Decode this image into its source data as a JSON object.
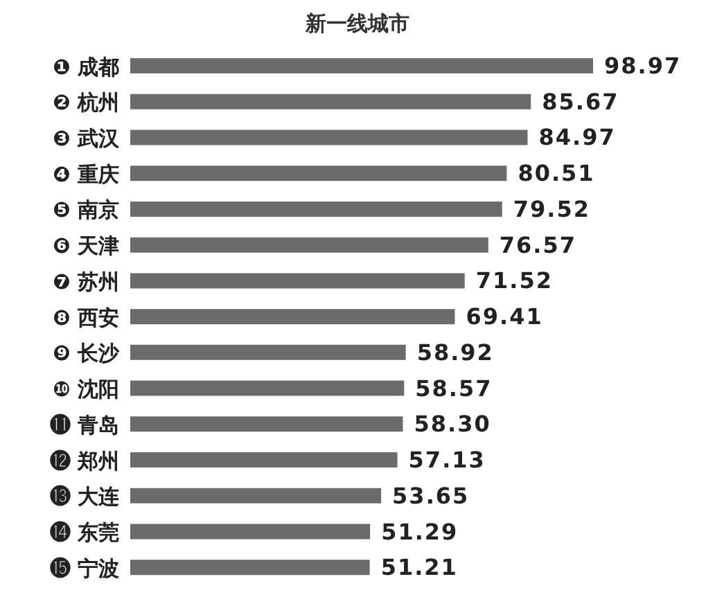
{
  "chart_data": {
    "type": "bar",
    "orientation": "horizontal",
    "title": "新一线城市",
    "categories": [
      "❶ 成都",
      "❷ 杭州",
      "❸ 武汉",
      "❹ 重庆",
      "❺ 南京",
      "❻ 天津",
      "❼ 苏州",
      "❽ 西安",
      "❾ 长沙",
      "❿ 沈阳",
      "⓫ 青岛",
      "⓬ 郑州",
      "⓭ 大连",
      "⓮ 东莞",
      "⓯ 宁波"
    ],
    "values": [
      98.97,
      85.67,
      84.97,
      80.51,
      79.52,
      76.57,
      71.52,
      69.41,
      58.92,
      58.57,
      58.3,
      57.13,
      53.65,
      51.29,
      51.21
    ],
    "value_labels": [
      "98.97",
      "85.67",
      "84.97",
      "80.51",
      "79.52",
      "76.57",
      "71.52",
      "69.41",
      "58.92",
      "58.57",
      "58.30",
      "57.13",
      "53.65",
      "51.29",
      "51.21"
    ],
    "color": "#6b6b6b"
  }
}
